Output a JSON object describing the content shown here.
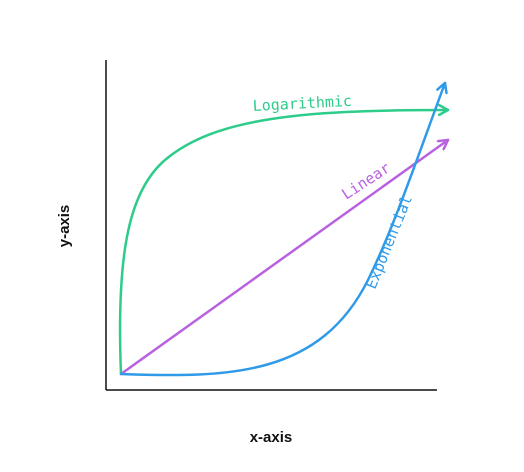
{
  "chart_data": {
    "type": "line",
    "xlabel": "x-axis",
    "ylabel": "y-axis",
    "grid": false,
    "legend": "none",
    "series": [
      {
        "name": "Logarithmic",
        "shape": "logarithmic",
        "color": "#2ecc8a"
      },
      {
        "name": "Linear",
        "shape": "linear",
        "color": "#b862e0"
      },
      {
        "name": "Exponential",
        "shape": "exponential",
        "color": "#2f9be8"
      }
    ]
  }
}
